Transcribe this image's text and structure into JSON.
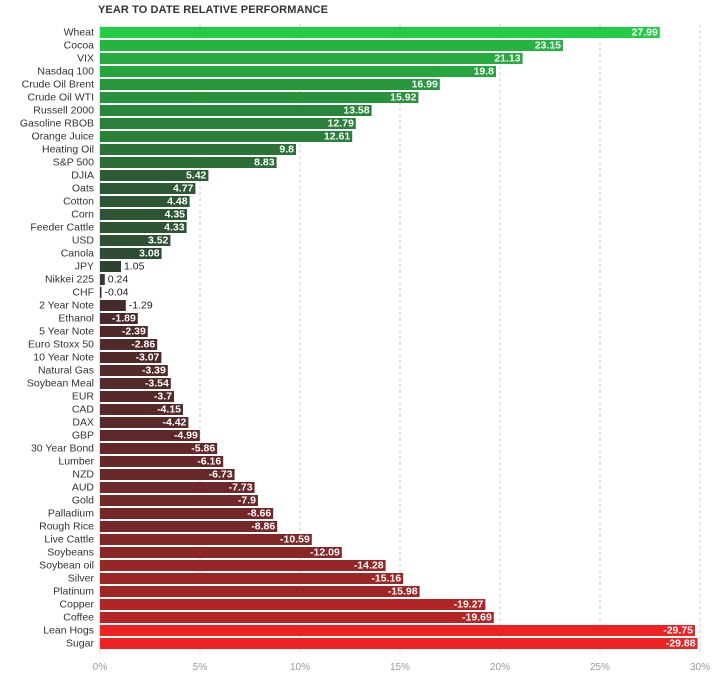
{
  "chart_data": {
    "type": "bar",
    "orientation": "horizontal",
    "title": "YEAR TO DATE RELATIVE PERFORMANCE",
    "categories": [
      "Wheat",
      "Cocoa",
      "VIX",
      "Nasdaq 100",
      "Crude Oil Brent",
      "Crude Oil WTI",
      "Russell 2000",
      "Gasoline RBOB",
      "Orange Juice",
      "Heating Oil",
      "S&P 500",
      "DJIA",
      "Oats",
      "Cotton",
      "Corn",
      "Feeder Cattle",
      "USD",
      "Canola",
      "JPY",
      "Nikkei 225",
      "CHF",
      "2 Year Note",
      "Ethanol",
      "5 Year Note",
      "Euro Stoxx 50",
      "10 Year Note",
      "Natural Gas",
      "Soybean Meal",
      "EUR",
      "CAD",
      "DAX",
      "GBP",
      "30 Year Bond",
      "Lumber",
      "NZD",
      "AUD",
      "Gold",
      "Palladium",
      "Rough Rice",
      "Live Cattle",
      "Soybeans",
      "Soybean oil",
      "Silver",
      "Platinum",
      "Copper",
      "Coffee",
      "Lean Hogs",
      "Sugar"
    ],
    "values": [
      27.99,
      23.15,
      21.13,
      19.8,
      16.99,
      15.92,
      13.58,
      12.79,
      12.61,
      9.8,
      8.83,
      5.42,
      4.77,
      4.48,
      4.35,
      4.33,
      3.52,
      3.08,
      1.05,
      0.24,
      -0.04,
      -1.29,
      -1.89,
      -2.39,
      -2.86,
      -3.07,
      -3.39,
      -3.54,
      -3.7,
      -4.15,
      -4.42,
      -4.99,
      -5.86,
      -6.16,
      -6.73,
      -7.73,
      -7.9,
      -8.66,
      -8.86,
      -10.59,
      -12.09,
      -14.28,
      -15.16,
      -15.98,
      -19.27,
      -19.69,
      -29.75,
      -29.88
    ],
    "value_labels": [
      "27.99",
      "23.15",
      "21.13",
      "19.8",
      "16.99",
      "15.92",
      "13.58",
      "12.79",
      "12.61",
      "9.8",
      "8.83",
      "5.42",
      "4.77",
      "4.48",
      "4.35",
      "4.33",
      "3.52",
      "3.08",
      "1.05",
      "0.24",
      "-0.04",
      "-1.29",
      "-1.89",
      "-2.39",
      "-2.86",
      "-3.07",
      "-3.39",
      "-3.54",
      "-3.7",
      "-4.15",
      "-4.42",
      "-4.99",
      "-5.86",
      "-6.16",
      "-6.73",
      "-7.73",
      "-7.9",
      "-8.66",
      "-8.86",
      "-10.59",
      "-12.09",
      "-14.28",
      "-15.16",
      "-15.98",
      "-19.27",
      "-19.69",
      "-29.75",
      "-29.88"
    ],
    "x_ticks": [
      "0%",
      "5%",
      "10%",
      "15%",
      "20%",
      "25%",
      "30%"
    ],
    "xlim": [
      0,
      30
    ],
    "bar_length_uses_absolute_value": true,
    "grid": "vertical dashed",
    "colors": {
      "positive_max": "#22cc44",
      "positive_min": "#2f3a2f",
      "negative_min": "#3a2a2a",
      "negative_max": "#ee2222",
      "grid": "#cccccc"
    }
  }
}
